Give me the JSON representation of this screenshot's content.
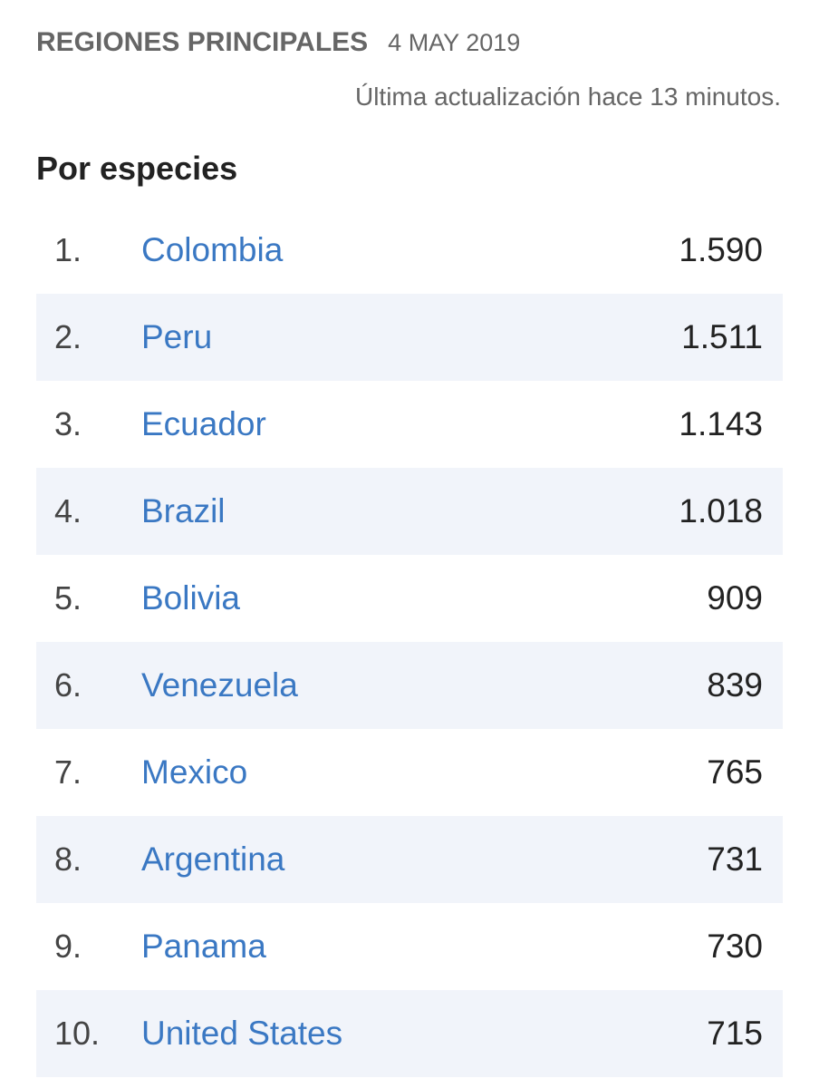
{
  "header": {
    "title": "REGIONES PRINCIPALES",
    "date": "4 MAY 2019",
    "last_update": "Última actualización hace 13 minutos."
  },
  "section": {
    "title": "Por especies"
  },
  "ranking": [
    {
      "rank": "1.",
      "region": "Colombia",
      "count": "1.590"
    },
    {
      "rank": "2.",
      "region": "Peru",
      "count": "1.511"
    },
    {
      "rank": "3.",
      "region": "Ecuador",
      "count": "1.143"
    },
    {
      "rank": "4.",
      "region": "Brazil",
      "count": "1.018"
    },
    {
      "rank": "5.",
      "region": "Bolivia",
      "count": "909"
    },
    {
      "rank": "6.",
      "region": "Venezuela",
      "count": "839"
    },
    {
      "rank": "7.",
      "region": "Mexico",
      "count": "765"
    },
    {
      "rank": "8.",
      "region": "Argentina",
      "count": "731"
    },
    {
      "rank": "9.",
      "region": "Panama",
      "count": "730"
    },
    {
      "rank": "10.",
      "region": "United States",
      "count": "715"
    }
  ],
  "colors": {
    "link": "#3a78c3",
    "stripe": "#f1f4fa",
    "muted_text": "#666666"
  }
}
